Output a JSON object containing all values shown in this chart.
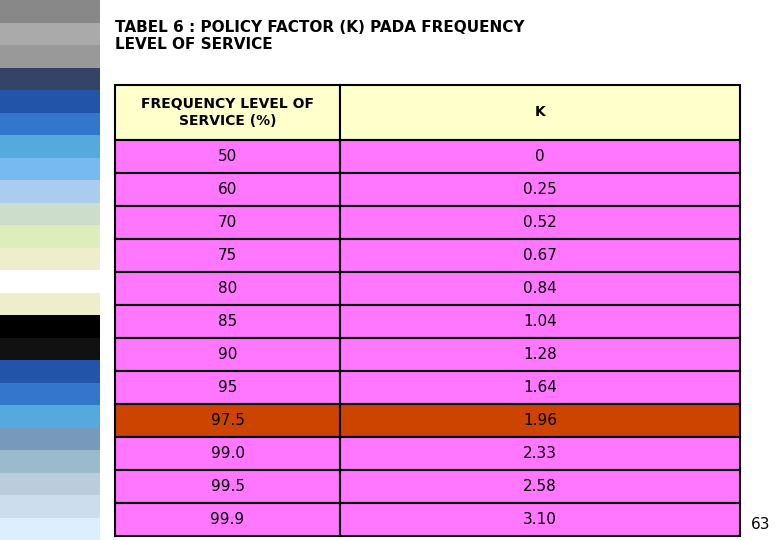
{
  "title": "TABEL 6 : POLICY FACTOR (K) PADA FREQUENCY\nLEVEL OF SERVICE",
  "col1_header": "FREQUENCY LEVEL OF\nSERVICE (%)",
  "col2_header": "K",
  "rows": [
    [
      "50",
      "0"
    ],
    [
      "60",
      "0.25"
    ],
    [
      "70",
      "0.52"
    ],
    [
      "75",
      "0.67"
    ],
    [
      "80",
      "0.84"
    ],
    [
      "85",
      "1.04"
    ],
    [
      "90",
      "1.28"
    ],
    [
      "95",
      "1.64"
    ],
    [
      "97.5",
      "1.96"
    ],
    [
      "99.0",
      "2.33"
    ],
    [
      "99.5",
      "2.58"
    ],
    [
      "99.9",
      "3.10"
    ]
  ],
  "highlight_row_index": 8,
  "header_bg": "#ffffcc",
  "normal_row_bg": "#ff77ff",
  "highlight_row_bg": "#cc4400",
  "border_color": "#000000",
  "text_color": "#000000",
  "title_fontsize": 11,
  "header_fontsize": 10,
  "cell_fontsize": 11,
  "page_number": "63",
  "background_color": "#ffffff",
  "sidebar_colors": [
    "#888888",
    "#555577",
    "#334466",
    "#2266aa",
    "#3388cc",
    "#55aadd",
    "#77bbee",
    "#aaccdd",
    "#ccddee",
    "#ddeecc",
    "#eeeebb",
    "#ffffff",
    "#000000",
    "#334466",
    "#2266aa",
    "#3388cc",
    "#55aadd",
    "#77bbee",
    "#aaccdd",
    "#ccddee"
  ],
  "fig_width": 7.8,
  "fig_height": 5.4,
  "fig_dpi": 100
}
